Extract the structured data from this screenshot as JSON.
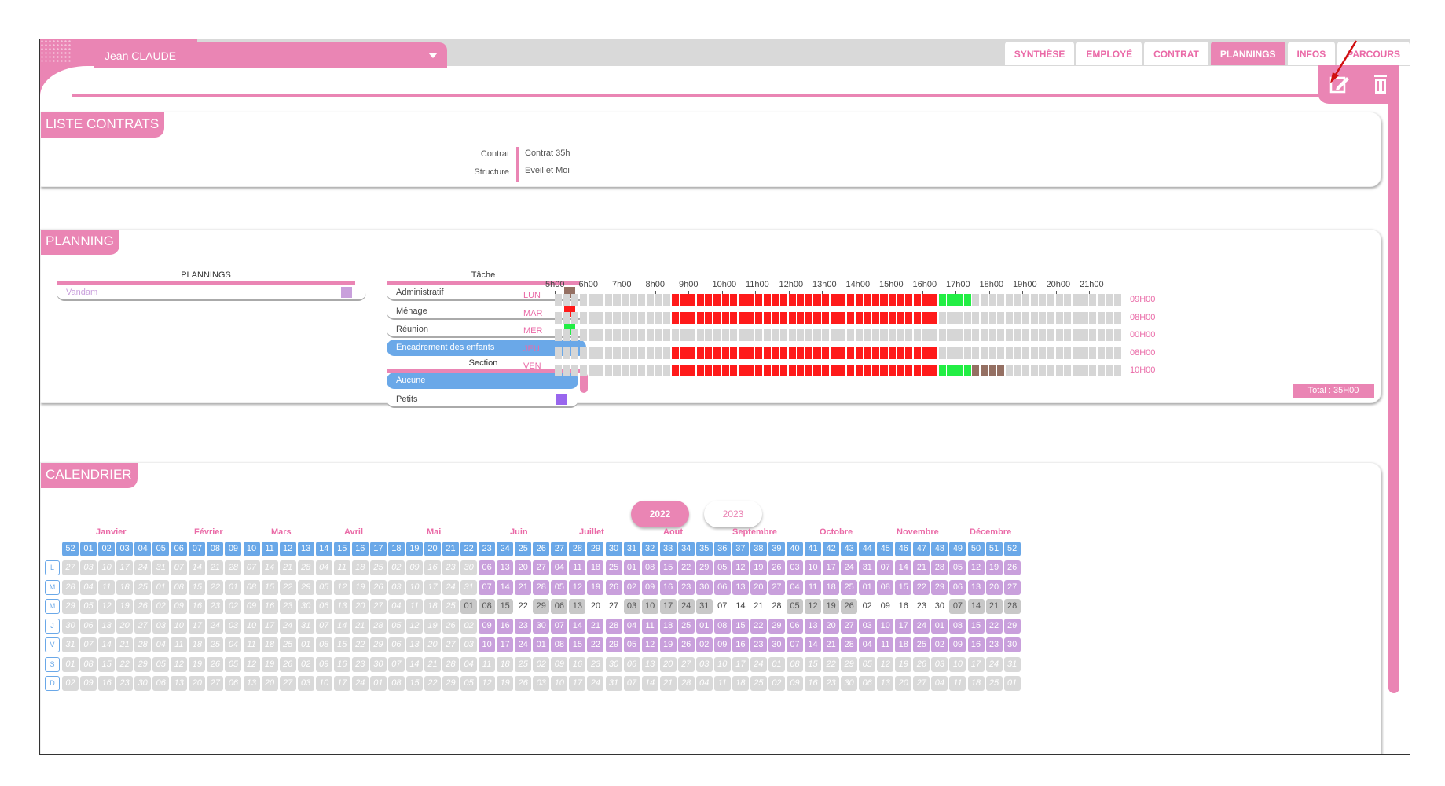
{
  "header": {
    "employee_name": "Jean CLAUDE",
    "tabs": [
      "SYNTHÈSE",
      "EMPLOYÉ",
      "CONTRAT",
      "PLANNINGS",
      "INFOS",
      "PARCOURS"
    ],
    "active_tab": "PLANNINGS"
  },
  "contracts": {
    "title": "LISTE CONTRATS",
    "contract_label": "Contrat",
    "contract_value": "Contrat 35h",
    "structure_label": "Structure",
    "structure_value": "Eveil et Moi"
  },
  "planning": {
    "title": "PLANNING",
    "plannings_header": "PLANNINGS",
    "plannings": [
      {
        "label": "Vandam",
        "color": "#c9a0dc"
      }
    ],
    "tache_header": "Tâche",
    "taches": [
      {
        "label": "Administratif",
        "color": "#957063"
      },
      {
        "label": "Ménage",
        "color": "#ff1a1a"
      },
      {
        "label": "Réunion",
        "color": "#22ee44"
      },
      {
        "label": "Encadrement des enfants",
        "selected": true
      }
    ],
    "section_header": "Section",
    "sections": [
      {
        "label": "Aucune",
        "selected": true
      },
      {
        "label": "Petits",
        "color": "#9966ee"
      }
    ],
    "hours": [
      "5h00",
      "6h00",
      "7h00",
      "8h00",
      "9h00",
      "10h00",
      "11h00",
      "12h00",
      "13h00",
      "14h00",
      "15h00",
      "16h00",
      "17h00",
      "18h00",
      "19h00",
      "20h00",
      "21h00"
    ],
    "days": [
      {
        "label": "LUN",
        "total": "09H00",
        "segments": [
          [
            "red",
            8.5,
            16.5
          ],
          [
            "green",
            16.5,
            17.5
          ]
        ]
      },
      {
        "label": "MAR",
        "total": "08H00",
        "segments": [
          [
            "red",
            8.5,
            16.5
          ]
        ]
      },
      {
        "label": "MER",
        "total": "00H00",
        "segments": []
      },
      {
        "label": "JEU",
        "total": "08H00",
        "segments": [
          [
            "red",
            8.5,
            16.5
          ]
        ]
      },
      {
        "label": "VEN",
        "total": "10H00",
        "segments": [
          [
            "red",
            8.5,
            16.5
          ],
          [
            "green",
            16.5,
            17.5
          ],
          [
            "brown",
            17.5,
            18.5
          ]
        ]
      }
    ],
    "total": "Total : 35H00"
  },
  "calendar": {
    "title": "CALENDRIER",
    "years": [
      "2022",
      "2023"
    ],
    "active_year": "2022",
    "months": [
      "Janvier",
      "Février",
      "Mars",
      "Avril",
      "Mai",
      "Juin",
      "Juillet",
      "Aout",
      "Septembre",
      "Octobre",
      "Novembre",
      "Décembre"
    ],
    "weeks": [
      "52",
      "01",
      "02",
      "03",
      "04",
      "05",
      "06",
      "07",
      "08",
      "09",
      "10",
      "11",
      "12",
      "13",
      "14",
      "15",
      "16",
      "17",
      "18",
      "19",
      "20",
      "21",
      "22",
      "23",
      "24",
      "25",
      "26",
      "27",
      "28",
      "29",
      "30",
      "31",
      "32",
      "33",
      "34",
      "35",
      "36",
      "37",
      "38",
      "39",
      "40",
      "41",
      "42",
      "43",
      "44",
      "45",
      "46",
      "47",
      "48",
      "49",
      "50",
      "51",
      "52"
    ],
    "day_buttons": [
      "L",
      "M",
      "M",
      "J",
      "V",
      "S",
      "D"
    ],
    "start_week_index": 23,
    "rows": [
      [
        "27",
        "03",
        "10",
        "17",
        "24",
        "31",
        "07",
        "14",
        "21",
        "28",
        "07",
        "14",
        "21",
        "28",
        "04",
        "11",
        "18",
        "25",
        "02",
        "09",
        "16",
        "23",
        "30",
        "06",
        "13",
        "20",
        "27",
        "04",
        "11",
        "18",
        "25",
        "01",
        "08",
        "15",
        "22",
        "29",
        "05",
        "12",
        "19",
        "26",
        "03",
        "10",
        "17",
        "24",
        "31",
        "07",
        "14",
        "21",
        "28",
        "05",
        "12",
        "19",
        "26"
      ],
      [
        "28",
        "04",
        "11",
        "18",
        "25",
        "01",
        "08",
        "15",
        "22",
        "01",
        "08",
        "15",
        "22",
        "29",
        "05",
        "12",
        "19",
        "26",
        "03",
        "10",
        "17",
        "24",
        "31",
        "07",
        "14",
        "21",
        "28",
        "05",
        "12",
        "19",
        "26",
        "02",
        "09",
        "16",
        "23",
        "30",
        "06",
        "13",
        "20",
        "27",
        "04",
        "11",
        "18",
        "25",
        "01",
        "08",
        "15",
        "22",
        "29",
        "06",
        "13",
        "20",
        "27"
      ],
      [
        "29",
        "05",
        "12",
        "19",
        "26",
        "02",
        "09",
        "16",
        "23",
        "02",
        "09",
        "16",
        "23",
        "30",
        "06",
        "13",
        "20",
        "27",
        "04",
        "11",
        "18",
        "25",
        "01",
        "08",
        "15",
        "22",
        "29",
        "06",
        "13",
        "20",
        "27",
        "03",
        "10",
        "17",
        "24",
        "31",
        "07",
        "14",
        "21",
        "28",
        "05",
        "12",
        "19",
        "26",
        "02",
        "09",
        "16",
        "23",
        "30",
        "07",
        "14",
        "21",
        "28"
      ],
      [
        "30",
        "06",
        "13",
        "20",
        "27",
        "03",
        "10",
        "17",
        "24",
        "03",
        "10",
        "17",
        "24",
        "31",
        "07",
        "14",
        "21",
        "28",
        "05",
        "12",
        "19",
        "26",
        "02",
        "09",
        "16",
        "23",
        "30",
        "07",
        "14",
        "21",
        "28",
        "04",
        "11",
        "18",
        "25",
        "01",
        "08",
        "15",
        "22",
        "29",
        "06",
        "13",
        "20",
        "27",
        "03",
        "10",
        "17",
        "24",
        "01",
        "08",
        "15",
        "22",
        "29"
      ],
      [
        "31",
        "07",
        "14",
        "21",
        "28",
        "04",
        "11",
        "18",
        "25",
        "04",
        "11",
        "18",
        "25",
        "01",
        "08",
        "15",
        "22",
        "29",
        "06",
        "13",
        "20",
        "27",
        "03",
        "10",
        "17",
        "24",
        "01",
        "08",
        "15",
        "22",
        "29",
        "05",
        "12",
        "19",
        "26",
        "02",
        "09",
        "16",
        "23",
        "30",
        "07",
        "14",
        "21",
        "28",
        "04",
        "11",
        "18",
        "25",
        "02",
        "09",
        "16",
        "23",
        "30"
      ],
      [
        "01",
        "08",
        "15",
        "22",
        "29",
        "05",
        "12",
        "19",
        "26",
        "05",
        "12",
        "19",
        "26",
        "02",
        "09",
        "16",
        "23",
        "30",
        "07",
        "14",
        "21",
        "28",
        "04",
        "11",
        "18",
        "25",
        "02",
        "09",
        "16",
        "23",
        "30",
        "06",
        "13",
        "20",
        "27",
        "03",
        "10",
        "17",
        "24",
        "01",
        "08",
        "15",
        "22",
        "29",
        "05",
        "12",
        "19",
        "26",
        "03",
        "10",
        "17",
        "24",
        "31"
      ],
      [
        "02",
        "09",
        "16",
        "23",
        "30",
        "06",
        "13",
        "20",
        "27",
        "06",
        "13",
        "20",
        "27",
        "03",
        "10",
        "17",
        "24",
        "01",
        "08",
        "15",
        "22",
        "29",
        "05",
        "12",
        "19",
        "26",
        "03",
        "10",
        "17",
        "24",
        "31",
        "07",
        "14",
        "21",
        "28",
        "04",
        "11",
        "18",
        "25",
        "02",
        "09",
        "16",
        "23",
        "30",
        "06",
        "13",
        "20",
        "27",
        "04",
        "11",
        "18",
        "25",
        "01"
      ]
    ],
    "wednesday_tones": [
      "g",
      "g",
      "g",
      "g",
      "g",
      "g",
      "g",
      "g",
      "g",
      "g",
      "g",
      "g",
      "g",
      "g",
      "g",
      "g",
      "g",
      "g",
      "g",
      "g",
      "g",
      "g",
      "g",
      "d",
      "d",
      "w",
      "d",
      "d",
      "d",
      "w",
      "w",
      "d",
      "d",
      "d",
      "d",
      "d",
      "w",
      "w",
      "w",
      "w",
      "d",
      "d",
      "d",
      "d",
      "w",
      "w",
      "w",
      "w",
      "w",
      "d",
      "d",
      "d",
      "d"
    ]
  },
  "colors": {
    "pink": "#ea85b4",
    "blue": "#6aa8e8",
    "red": "#ff1a1a",
    "green": "#22ee44",
    "brown": "#957063",
    "lilac": "#c9a0dc"
  }
}
